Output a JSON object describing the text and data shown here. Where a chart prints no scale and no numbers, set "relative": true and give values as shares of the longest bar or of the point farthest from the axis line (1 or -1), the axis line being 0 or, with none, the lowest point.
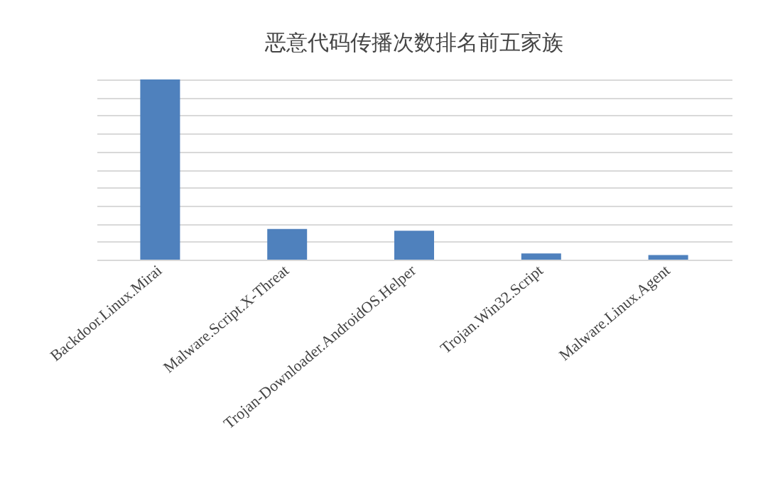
{
  "chart_data": {
    "type": "bar",
    "title": "恶意代码传播次数排名前五家族",
    "categories": [
      "Backdoor.Linux.Mirai",
      "Malware.Script.X-Threat",
      "Trojan-Downloader.AndroidOS.Helper",
      "Trojan.Win32.Script",
      "Malware.Linux.Agent"
    ],
    "values": [
      1,
      0.17,
      0.16,
      0.034,
      0.026
    ],
    "color": "#4f81bd",
    "relative": true,
    "grid": "y",
    "legend": false
  }
}
